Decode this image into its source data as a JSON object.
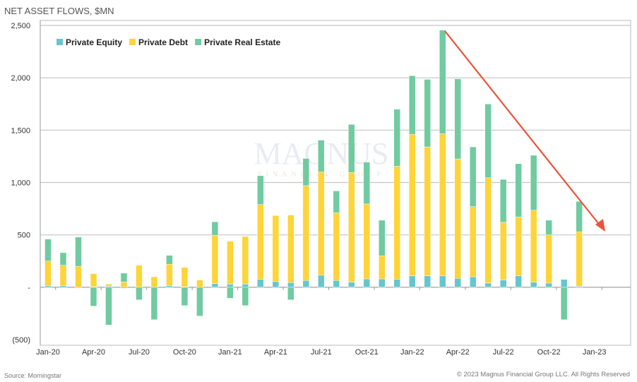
{
  "chart_data": {
    "type": "bar",
    "stacked": true,
    "title": "NET ASSET FLOWS, $MN",
    "xlabel": "",
    "ylabel": "",
    "ylim": [
      -500,
      2500
    ],
    "yticks": [
      -500,
      0,
      500,
      1000,
      1500,
      2000,
      2500
    ],
    "ytick_labels": [
      "(500)",
      "-",
      "500",
      "1,000",
      "1,500",
      "2,000",
      "2,500"
    ],
    "xtick_labels": [
      "Jan-20",
      "Apr-20",
      "Jul-20",
      "Oct-20",
      "Jan-21",
      "Apr-21",
      "Jul-21",
      "Oct-21",
      "Jan-22",
      "Apr-22",
      "Jul-22",
      "Oct-22",
      "Jan-23"
    ],
    "grid": true,
    "legend_position": "top-left",
    "categories": [
      "Jan-20",
      "Feb-20",
      "Mar-20",
      "Apr-20",
      "May-20",
      "Jun-20",
      "Jul-20",
      "Aug-20",
      "Sep-20",
      "Oct-20",
      "Nov-20",
      "Dec-20",
      "Jan-21",
      "Feb-21",
      "Mar-21",
      "Apr-21",
      "May-21",
      "Jun-21",
      "Jul-21",
      "Aug-21",
      "Sep-21",
      "Oct-21",
      "Nov-21",
      "Dec-21",
      "Jan-22",
      "Feb-22",
      "Mar-22",
      "Apr-22",
      "May-22",
      "Jun-22",
      "Jul-22",
      "Aug-22",
      "Sep-22",
      "Oct-22",
      "Nov-22",
      "Dec-22"
    ],
    "series": [
      {
        "name": "Private Equity",
        "color": "#67C6CD",
        "values": [
          15,
          15,
          0,
          5,
          10,
          -10,
          0,
          0,
          15,
          5,
          0,
          35,
          30,
          30,
          75,
          55,
          45,
          65,
          115,
          65,
          50,
          80,
          80,
          75,
          110,
          110,
          110,
          85,
          100,
          40,
          70,
          110,
          50,
          40,
          75,
          10
        ]
      },
      {
        "name": "Private Debt",
        "color": "#FFD438",
        "values": [
          235,
          195,
          200,
          125,
          20,
          50,
          210,
          100,
          205,
          185,
          70,
          460,
          410,
          455,
          715,
          630,
          645,
          905,
          985,
          645,
          1045,
          715,
          220,
          1080,
          1350,
          1230,
          1355,
          1140,
          670,
          1005,
          550,
          560,
          685,
          460,
          0,
          520
        ]
      },
      {
        "name": "Private Real Estate",
        "color": "#70CBA0",
        "values": [
          210,
          120,
          280,
          -180,
          -360,
          85,
          -120,
          -310,
          85,
          -175,
          -275,
          130,
          -105,
          -175,
          275,
          0,
          -120,
          260,
          305,
          210,
          460,
          400,
          340,
          545,
          560,
          645,
          990,
          765,
          570,
          705,
          410,
          510,
          525,
          140,
          -310,
          290
        ]
      }
    ],
    "annotations": [
      {
        "type": "trend-arrow",
        "color": "#E8553A",
        "from": "Mar-22",
        "to": "Jan-23"
      }
    ],
    "source": "Source: Morningstar",
    "copyright": "© 2023 Magnus Financial Group LLC. All Rights Reserved",
    "watermark": "MAGNUS FINANCIAL GROUP"
  }
}
